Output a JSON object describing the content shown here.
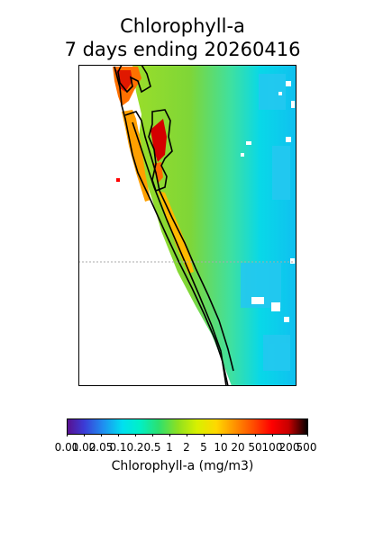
{
  "figure": {
    "title_line1": "Chlorophyll-a",
    "title_line2": "7 days ending 20260416"
  },
  "colorbar": {
    "label": "Chlorophyll-a (mg/m3)",
    "ticks": [
      "0.01",
      "0.02",
      "0.05",
      "0.1",
      "0.2",
      "0.5",
      "1",
      "2",
      "5",
      "10",
      "20",
      "50",
      "100",
      "200",
      "500"
    ],
    "colors": [
      "#5a0f8e",
      "#3b3bd6",
      "#1f8ff0",
      "#00e0f0",
      "#00f0c8",
      "#2ce070",
      "#8ee020",
      "#d8f000",
      "#ffd800",
      "#ff9800",
      "#ff5000",
      "#ff0000",
      "#c80000",
      "#600000",
      "#000000"
    ]
  },
  "map": {
    "ocean_offshore_color": "#00d4f0",
    "ocean_nearshore_color": "#7ed630",
    "estuary_colors": [
      "#ff9c00",
      "#ff3000",
      "#d40000"
    ],
    "coastline_color": "#000000",
    "land_color": "#ffffff",
    "reference_line": "dotted gray"
  }
}
